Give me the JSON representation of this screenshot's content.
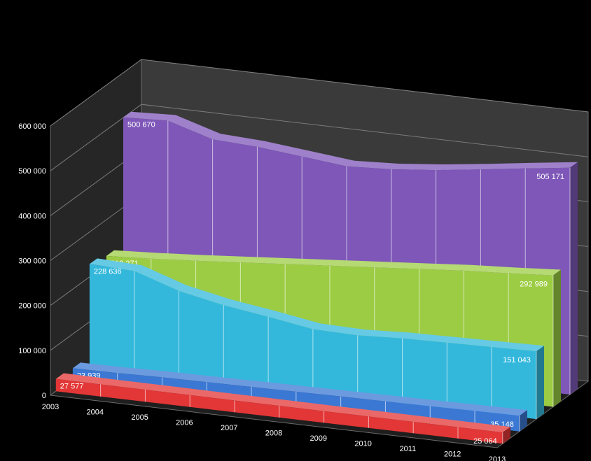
{
  "chart_data": {
    "type": "area",
    "categories": [
      "2003",
      "2004",
      "2005",
      "2006",
      "2007",
      "2008",
      "2009",
      "2010",
      "2011",
      "2012",
      "2013"
    ],
    "ylim": [
      0,
      600000
    ],
    "yticks": [
      "0",
      "100 000",
      "200 000",
      "300 000",
      "400 000",
      "500 000",
      "600 000"
    ],
    "series": [
      {
        "color": "#7e57b8",
        "values": [
          500670,
          505000,
          475000,
          470000,
          460000,
          450000,
          455000,
          465000,
          478000,
          492000,
          505171
        ],
        "labels": {
          "first": "500 670",
          "last": "505 171"
        }
      },
      {
        "color": "#9ccc44",
        "values": [
          219271,
          225000,
          232000,
          240000,
          248000,
          256000,
          264000,
          272000,
          280000,
          286000,
          292989
        ],
        "labels": {
          "first": "219 271",
          "last": "292 989"
        }
      },
      {
        "color": "#33b8dc",
        "values": [
          228636,
          225000,
          192000,
          172000,
          158000,
          142000,
          140000,
          145000,
          147000,
          149000,
          151043
        ],
        "labels": {
          "first": "228 636",
          "last": "151 043"
        }
      },
      {
        "color": "#3a78d4",
        "values": [
          23939,
          25000,
          27000,
          28000,
          29000,
          30000,
          31000,
          32000,
          33000,
          34000,
          35148
        ],
        "labels": {
          "first": "23 939",
          "last": "35 148"
        }
      },
      {
        "color": "#e33636",
        "values": [
          27577,
          27000,
          26800,
          26500,
          26200,
          26000,
          25800,
          25600,
          25400,
          25200,
          25064
        ],
        "labels": {
          "first": "27 577",
          "last": "25 064"
        }
      }
    ],
    "grid": true,
    "legend": "none",
    "style": "3d"
  }
}
